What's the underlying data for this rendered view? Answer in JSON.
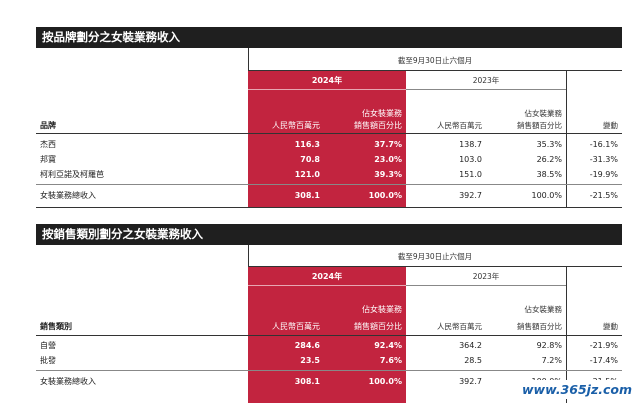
{
  "sections": [
    {
      "title": "按品牌劃分之女裝業務收入",
      "period": "截至9月30日止六個月",
      "year_2024": "2024年",
      "year_2023": "2023年",
      "col_amount": "人民幣百萬元",
      "col_pct_l1": "佔女裝業務",
      "col_pct_l2": "銷售額百分比",
      "col_change": "變動",
      "row_header": "品牌",
      "rows": [
        {
          "label": "杰西",
          "a24": "116.3",
          "p24": "37.7%",
          "a23": "138.7",
          "p23": "35.3%",
          "chg": "-16.1%"
        },
        {
          "label": "邦寶",
          "a24": "70.8",
          "p24": "23.0%",
          "a23": "103.0",
          "p23": "26.2%",
          "chg": "-31.3%"
        },
        {
          "label": "柯利亞諾及柯羅芭",
          "a24": "121.0",
          "p24": "39.3%",
          "a23": "151.0",
          "p23": "38.5%",
          "chg": "-19.9%"
        }
      ],
      "total": {
        "label": "女裝業務總收入",
        "a24": "308.1",
        "p24": "100.0%",
        "a23": "392.7",
        "p23": "100.0%",
        "chg": "-21.5%"
      }
    },
    {
      "title": "按銷售類別劃分之女裝業務收入",
      "period": "截至9月30日止六個月",
      "year_2024": "2024年",
      "year_2023": "2023年",
      "col_amount": "人民幣百萬元",
      "col_pct_l1": "佔女裝業務",
      "col_pct_l2": "銷售額百分比",
      "col_change": "變動",
      "row_header": "銷售類別",
      "rows": [
        {
          "label": "自營",
          "a24": "284.6",
          "p24": "92.4%",
          "a23": "364.2",
          "p23": "92.8%",
          "chg": "-21.9%"
        },
        {
          "label": "批發",
          "a24": "23.5",
          "p24": "7.6%",
          "a23": "28.5",
          "p23": "7.2%",
          "chg": "-17.4%"
        }
      ],
      "total": {
        "label": "女裝業務總收入",
        "a24": "308.1",
        "p24": "100.0%",
        "a23": "392.7",
        "p23": "100.0%",
        "chg": "-21.5%"
      }
    }
  ],
  "watermark": "www.365jz.com",
  "colors": {
    "highlight": "#c2243f",
    "title_bar": "#1f1f1f",
    "watermark": "#1a5fa8"
  }
}
